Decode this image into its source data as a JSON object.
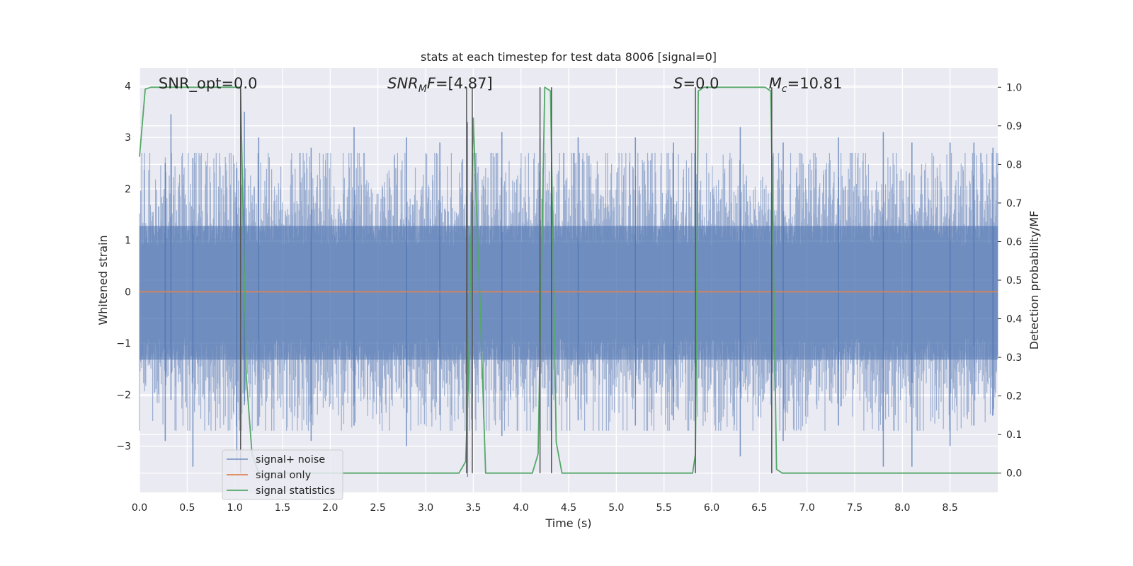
{
  "chart_data": {
    "type": "line",
    "title": "stats at each timestep for test data 8006 [signal=0]",
    "xlabel": "Time (s)",
    "ylabel": "Whitened strain",
    "y2label": "Detection probability/MF",
    "xlim": [
      0,
      9
    ],
    "ylim": [
      -3.9,
      4.35
    ],
    "y2lim": [
      -0.05,
      1.05
    ],
    "x_ticks": [
      0.0,
      0.5,
      1.0,
      1.5,
      2.0,
      2.5,
      3.0,
      3.5,
      4.0,
      4.5,
      5.0,
      5.5,
      6.0,
      6.5,
      7.0,
      7.5,
      8.0,
      8.5
    ],
    "x_tick_labels": [
      "0.0",
      "0.5",
      "1.0",
      "1.5",
      "2.0",
      "2.5",
      "3.0",
      "3.5",
      "4.0",
      "4.5",
      "5.0",
      "5.5",
      "6.0",
      "6.5",
      "7.0",
      "7.5",
      "8.0",
      "8.5"
    ],
    "y_ticks": [
      4,
      3,
      2,
      1,
      0,
      -1,
      -2,
      -3
    ],
    "y_tick_labels": [
      "4",
      "3",
      "2",
      "1",
      "0",
      "−1",
      "−2",
      "−3"
    ],
    "y2_ticks": [
      1.0,
      0.9,
      0.8,
      0.7,
      0.6,
      0.5,
      0.4,
      0.3,
      0.2,
      0.1,
      0.0
    ],
    "y2_tick_labels": [
      "1.0",
      "0.9",
      "0.8",
      "0.7",
      "0.6",
      "0.5",
      "0.4",
      "0.3",
      "0.2",
      "0.1",
      "0.0"
    ],
    "grid": true,
    "legend_position": "lower-left",
    "annotations": [
      {
        "parts": [
          {
            "text": "SNR_opt=0.0",
            "italic": false
          }
        ],
        "x": 0.2
      },
      {
        "parts": [
          {
            "text": "SNR",
            "italic": true
          },
          {
            "text": "M",
            "italic": true,
            "sub": true
          },
          {
            "text": "F",
            "italic": true
          },
          {
            "text": "=[4.87]",
            "italic": false
          }
        ],
        "x": 2.6
      },
      {
        "parts": [
          {
            "text": "S",
            "italic": true
          },
          {
            "text": "=0.0",
            "italic": false
          }
        ],
        "x": 5.6
      },
      {
        "parts": [
          {
            "text": "M",
            "italic": true
          },
          {
            "text": "c",
            "italic": true,
            "sub": true
          },
          {
            "text": "=10.81",
            "italic": false
          }
        ],
        "x": 6.6
      }
    ],
    "series": [
      {
        "name": "signal+ noise",
        "color": "#4C72B0",
        "style": "noise",
        "axis": "left",
        "peaks": [
          [
            0.27,
            2.5,
            -2.9
          ],
          [
            0.33,
            3.45,
            -2.1
          ],
          [
            0.56,
            2.6,
            -3.4
          ],
          [
            1.02,
            2.4,
            -3.3
          ],
          [
            1.1,
            3.5,
            -2.2
          ],
          [
            1.25,
            3.0,
            -2.6
          ],
          [
            1.8,
            2.8,
            -2.9
          ],
          [
            2.25,
            3.2,
            -2.6
          ],
          [
            2.8,
            3.0,
            -3.0
          ],
          [
            3.15,
            2.9,
            -2.4
          ],
          [
            3.44,
            3.3,
            -3.6
          ],
          [
            3.8,
            3.1,
            -2.8
          ],
          [
            4.2,
            3.0,
            -2.7
          ],
          [
            4.6,
            3.0,
            -2.5
          ],
          [
            5.2,
            3.0,
            -2.6
          ],
          [
            5.6,
            2.9,
            -2.5
          ],
          [
            6.3,
            3.2,
            -3.2
          ],
          [
            6.75,
            2.9,
            -2.9
          ],
          [
            7.33,
            3.0,
            -2.6
          ],
          [
            7.8,
            3.1,
            -3.4
          ],
          [
            8.1,
            2.9,
            -3.4
          ],
          [
            8.5,
            2.9,
            -3.0
          ],
          [
            8.75,
            2.9,
            -2.6
          ],
          [
            8.95,
            2.8,
            -2.4
          ]
        ]
      },
      {
        "name": "signal only",
        "color": "#DD8452",
        "axis": "left",
        "x": [
          0,
          9
        ],
        "y": [
          0,
          0
        ]
      },
      {
        "name": "signal statistics",
        "color": "#55A868",
        "axis": "right",
        "x": [
          0.0,
          0.06,
          0.12,
          1.0,
          1.06,
          1.12,
          1.18,
          1.25,
          3.35,
          3.42,
          3.45,
          3.5,
          3.57,
          3.63,
          4.12,
          4.18,
          4.25,
          4.31,
          4.37,
          4.43,
          5.8,
          5.83,
          5.86,
          5.92,
          6.56,
          6.62,
          6.68,
          6.74,
          9.0
        ],
        "y": [
          0.82,
          0.995,
          1.0,
          1.0,
          1.0,
          0.25,
          0.05,
          0.0,
          0.0,
          0.03,
          0.25,
          0.92,
          0.45,
          0.0,
          0.0,
          0.05,
          1.0,
          0.99,
          0.08,
          0.0,
          0.0,
          0.05,
          0.99,
          1.0,
          1.0,
          0.99,
          0.01,
          0.0,
          0.0
        ]
      }
    ],
    "vlines": [
      1.06,
      3.43,
      3.49,
      4.2,
      4.32,
      5.83,
      6.63
    ],
    "vline_color": "#555555"
  }
}
